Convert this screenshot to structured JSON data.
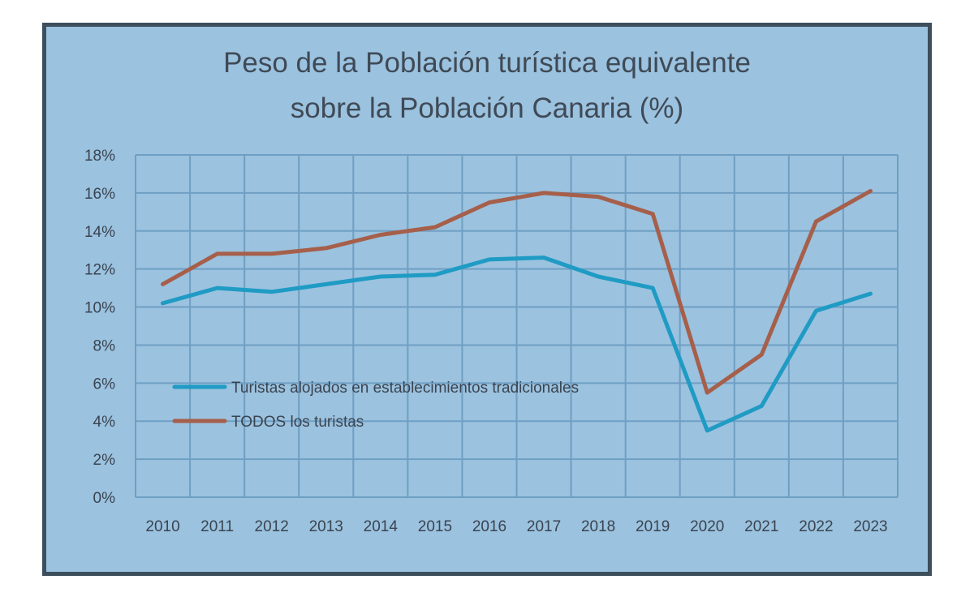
{
  "chart_data": {
    "type": "line",
    "title_line1": "Peso de la Población turística equivalente",
    "title_line2": "sobre la Población Canaria (%)",
    "x": [
      "2010",
      "2011",
      "2012",
      "2013",
      "2014",
      "2015",
      "2016",
      "2017",
      "2018",
      "2019",
      "2020",
      "2021",
      "2022",
      "2023"
    ],
    "y_ticks": [
      "0%",
      "2%",
      "4%",
      "6%",
      "8%",
      "10%",
      "12%",
      "14%",
      "16%",
      "18%"
    ],
    "ylim": [
      0,
      18
    ],
    "grid": true,
    "legend_position": "left, middle of plot",
    "series": [
      {
        "name": "Turistas alojados en establecimientos tradicionales",
        "color": "#1f9bc4",
        "values": [
          10.2,
          11.0,
          10.8,
          11.2,
          11.6,
          11.7,
          12.5,
          12.6,
          11.6,
          11.0,
          3.5,
          4.8,
          9.8,
          10.7
        ]
      },
      {
        "name": "TODOS los turistas",
        "color": "#a65f4a",
        "values": [
          11.2,
          12.8,
          12.8,
          13.1,
          13.8,
          14.2,
          15.5,
          16.0,
          15.8,
          14.9,
          5.5,
          7.5,
          14.5,
          16.1
        ]
      }
    ]
  },
  "colors": {
    "background": "#9bc2df",
    "border": "#3d4e5c",
    "grid": "#6f9fc3"
  }
}
